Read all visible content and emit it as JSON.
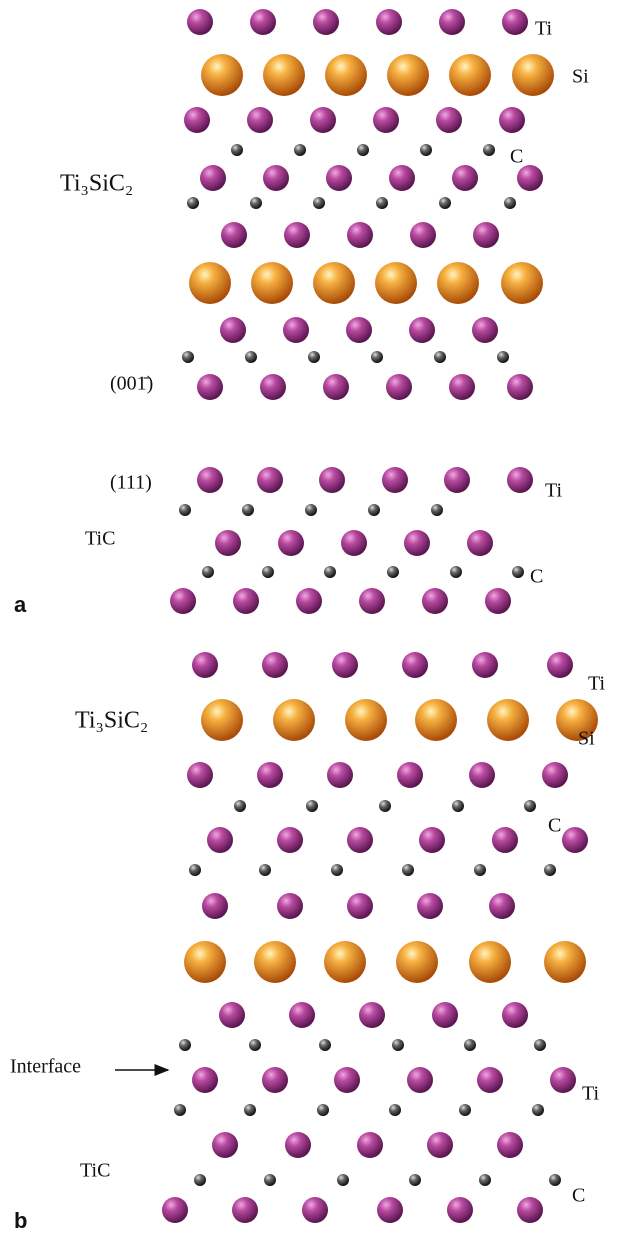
{
  "panel_a": {
    "label": "a",
    "compound_top": "Ti₃SiC₂",
    "compound_bottom": "TiC",
    "plane_top": "(001̄)",
    "plane_bottom": "(111)",
    "ti_top": "Ti",
    "si": "Si",
    "c_top": "C",
    "ti_bottom": "Ti",
    "c_bottom": "C"
  },
  "panel_b": {
    "label": "b",
    "compound_top": "Ti₃SiC₂",
    "compound_bottom": "TiC",
    "interface": "Interface",
    "ti_top": "Ti",
    "si": "Si",
    "c_top": "C",
    "ti_bottom": "Ti",
    "c_bottom": "C"
  }
}
